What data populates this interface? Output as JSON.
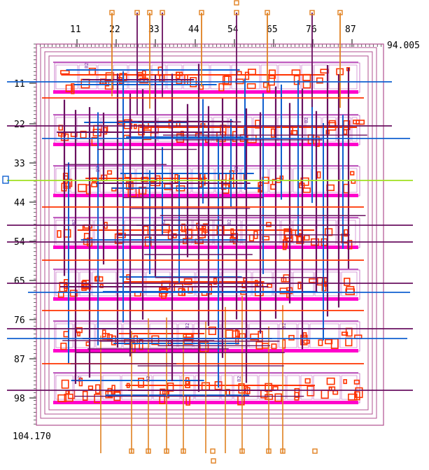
{
  "ruler": {
    "x_ticks": [
      "11",
      "22",
      "33",
      "44",
      "54",
      "65",
      "76",
      "87"
    ],
    "y_ticks": [
      "11",
      "22",
      "33",
      "44",
      "54",
      "65",
      "76",
      "87",
      "98"
    ],
    "x_max_label": "94.005",
    "y_max_label": "104.170"
  },
  "layout": {
    "row_count": 7,
    "cell_labels": [
      "B2",
      "B2",
      "B2",
      "B2",
      "B2",
      "B2",
      "B2",
      "B2",
      "B2",
      "B2",
      "B2",
      "B2"
    ]
  },
  "colors": {
    "boundary": "#b05090",
    "supply_rail": "#ff00cc",
    "metal1": "#ff3300",
    "metal2_blue": "#1060d0",
    "metal3_purple": "#6a1060",
    "metal4_orange": "#e08020",
    "highlight_green": "#a0e020",
    "cell_outline": "#c060c0"
  }
}
